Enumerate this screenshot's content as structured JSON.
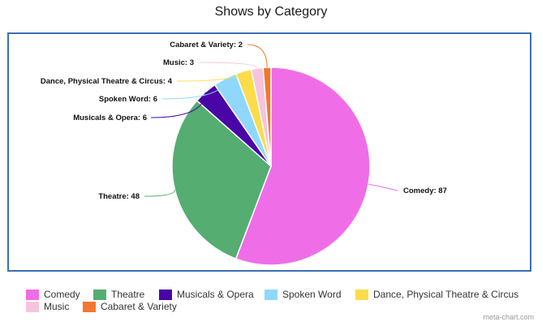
{
  "chart_data": {
    "type": "pie",
    "title": "Shows by Category",
    "slices": [
      {
        "label": "Comedy",
        "value": 87,
        "color": "#f06de8"
      },
      {
        "label": "Theatre",
        "value": 48,
        "color": "#55ad72"
      },
      {
        "label": "Musicals & Opera",
        "value": 6,
        "color": "#4a05a6"
      },
      {
        "label": "Spoken Word",
        "value": 6,
        "color": "#8fd8fb"
      },
      {
        "label": "Dance, Physical Theatre & Circus",
        "value": 4,
        "color": "#fbdc4a"
      },
      {
        "label": "Music",
        "value": 3,
        "color": "#f7c4dd"
      },
      {
        "label": "Cabaret & Variety",
        "value": 2,
        "color": "#f2782f"
      }
    ],
    "data_labels": [
      "Comedy: 87",
      "Theatre: 48",
      "Musicals & Opera: 6",
      "Spoken Word: 6",
      "Dance, Physical Theatre & Circus: 4",
      "Music: 3",
      "Cabaret & Variety: 2"
    ],
    "legend_position": "bottom"
  },
  "watermark": "meta-chart.com"
}
